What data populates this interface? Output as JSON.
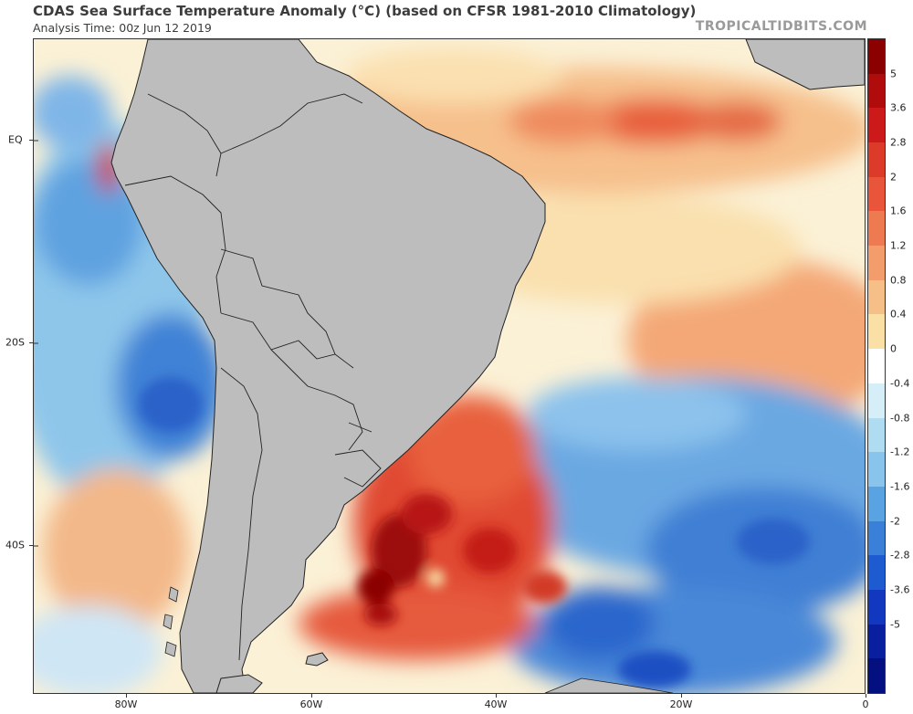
{
  "header": {
    "title": "CDAS Sea Surface Temperature Anomaly (°C) (based on CFSR 1981-2010 Climatology)",
    "subtitle": "Analysis Time: 00z Jun 12 2019",
    "credit": "TROPICALTIDBITS.COM"
  },
  "map": {
    "latitude_labels": [
      "EQ",
      "20S",
      "40S"
    ],
    "longitude_labels": [
      "80W",
      "60W",
      "40W",
      "20W",
      "0"
    ],
    "land_color": "#bdbdbd",
    "coast_color": "#222222"
  },
  "colorbar": {
    "labels": [
      "5",
      "3.6",
      "2.8",
      "2",
      "1.6",
      "1.2",
      "0.8",
      "0.4",
      "0",
      "-0.4",
      "-0.8",
      "-1.2",
      "-1.6",
      "-2",
      "-2.8",
      "-3.6",
      "-5"
    ],
    "colors": [
      "#8b0000",
      "#b00c0c",
      "#cc1a1a",
      "#dd3b2a",
      "#e8553a",
      "#ee7a52",
      "#f39c6c",
      "#f7bf88",
      "#fbe0a6",
      "#ffffff",
      "#d6eef8",
      "#b0dcf2",
      "#88c4ec",
      "#5aa3e2",
      "#3a7fd8",
      "#1f5bd0",
      "#1238c0",
      "#0a1fa0",
      "#051080"
    ]
  },
  "sst_anomaly": {
    "warm_regions": [
      "Southwest Atlantic off Argentina and Uruguay",
      "Equatorial Atlantic",
      "Off Ecuador coast"
    ],
    "cool_regions": [
      "Southeast Pacific off Chile and Peru",
      "South Atlantic 20S-40S",
      "South Atlantic south of 40S"
    ]
  }
}
